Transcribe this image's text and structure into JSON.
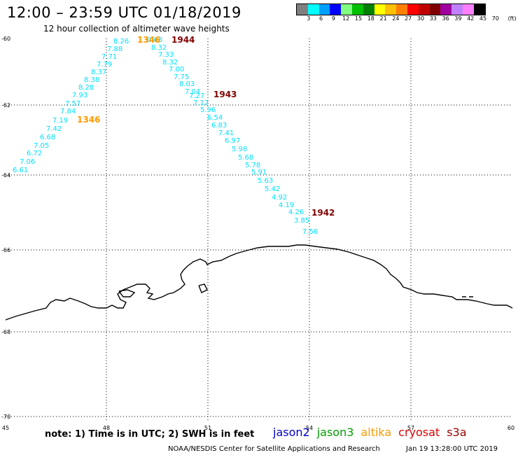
{
  "header": {
    "title": "12:00 – 23:59 UTC 01/18/2019",
    "subtitle": "12 hour collection of altimeter wave heights"
  },
  "legend": {
    "colors": [
      "#808080",
      "#00ffff",
      "#00a0ff",
      "#0000ff",
      "#80ff80",
      "#00c000",
      "#008000",
      "#ffff00",
      "#ffc000",
      "#ff8000",
      "#ff0000",
      "#c00000",
      "#800000",
      "#a000a0",
      "#c080ff",
      "#ff80ff",
      "#000000"
    ],
    "labels": [
      "3",
      "6",
      "9",
      "12",
      "15",
      "18",
      "21",
      "24",
      "27",
      "30",
      "33",
      "36",
      "39",
      "42",
      "45",
      "70"
    ],
    "unit": "(ft)"
  },
  "axes": {
    "x_ticks": [
      "45",
      "48",
      "51",
      "54",
      "57",
      "60"
    ],
    "y_ticks": [
      "-60",
      "-62",
      "-64",
      "-66",
      "-68",
      "-70"
    ]
  },
  "tracks": [
    {
      "satellite": "altika",
      "color": "#00e0ff",
      "pass_time": "1346",
      "pass_time_color": "#ff9900",
      "heights": [
        "8.26",
        "7.88",
        "7.71",
        "7.79",
        "8.37",
        "8.38",
        "8.28",
        "7.93",
        "7.57",
        "7.84",
        "7.19",
        "7.42",
        "6.68",
        "7.05",
        "6.72",
        "7.06",
        "6.61"
      ]
    },
    {
      "satellite": "cryosat",
      "color": "#00e0ff",
      "pass_time": "1944",
      "pass_time_color": "#800000",
      "heights": [
        "9.68",
        "8.32",
        "7.33",
        "8.32",
        "7.00",
        "7.75",
        "8.03",
        "7.04",
        "7.27",
        "7.12",
        "5.96",
        "6.54",
        "6.83",
        "7.41",
        "6.97",
        "5.98",
        "5.68",
        "5.78",
        "5.91",
        "5.63",
        "5.42",
        "4.92",
        "4.19",
        "4.26",
        "3.85",
        "7.56"
      ]
    },
    {
      "satellite": "cryosat",
      "pass_time": "1943",
      "pass_time_color": "#800000"
    },
    {
      "satellite": "cryosat",
      "pass_time": "1942",
      "pass_time_color": "#800000"
    },
    {
      "satellite": "altika",
      "pass_time": "1346",
      "pass_time_color": "#ff9900"
    }
  ],
  "footer": {
    "note": "note: 1) Time is in UTC; 2) SWH is in feet",
    "satellites": [
      {
        "name": "jason2",
        "color": "#0000cc"
      },
      {
        "name": "jason3",
        "color": "#00a000"
      },
      {
        "name": "altika",
        "color": "#ff9900"
      },
      {
        "name": "cryosat",
        "color": "#dd0000"
      },
      {
        "name": "s3a",
        "color": "#990000"
      }
    ],
    "credit": "NOAA/NESDIS Center for Satellite Applications and Research",
    "timestamp": "Jan 19 13:28:00 UTC 2019"
  }
}
